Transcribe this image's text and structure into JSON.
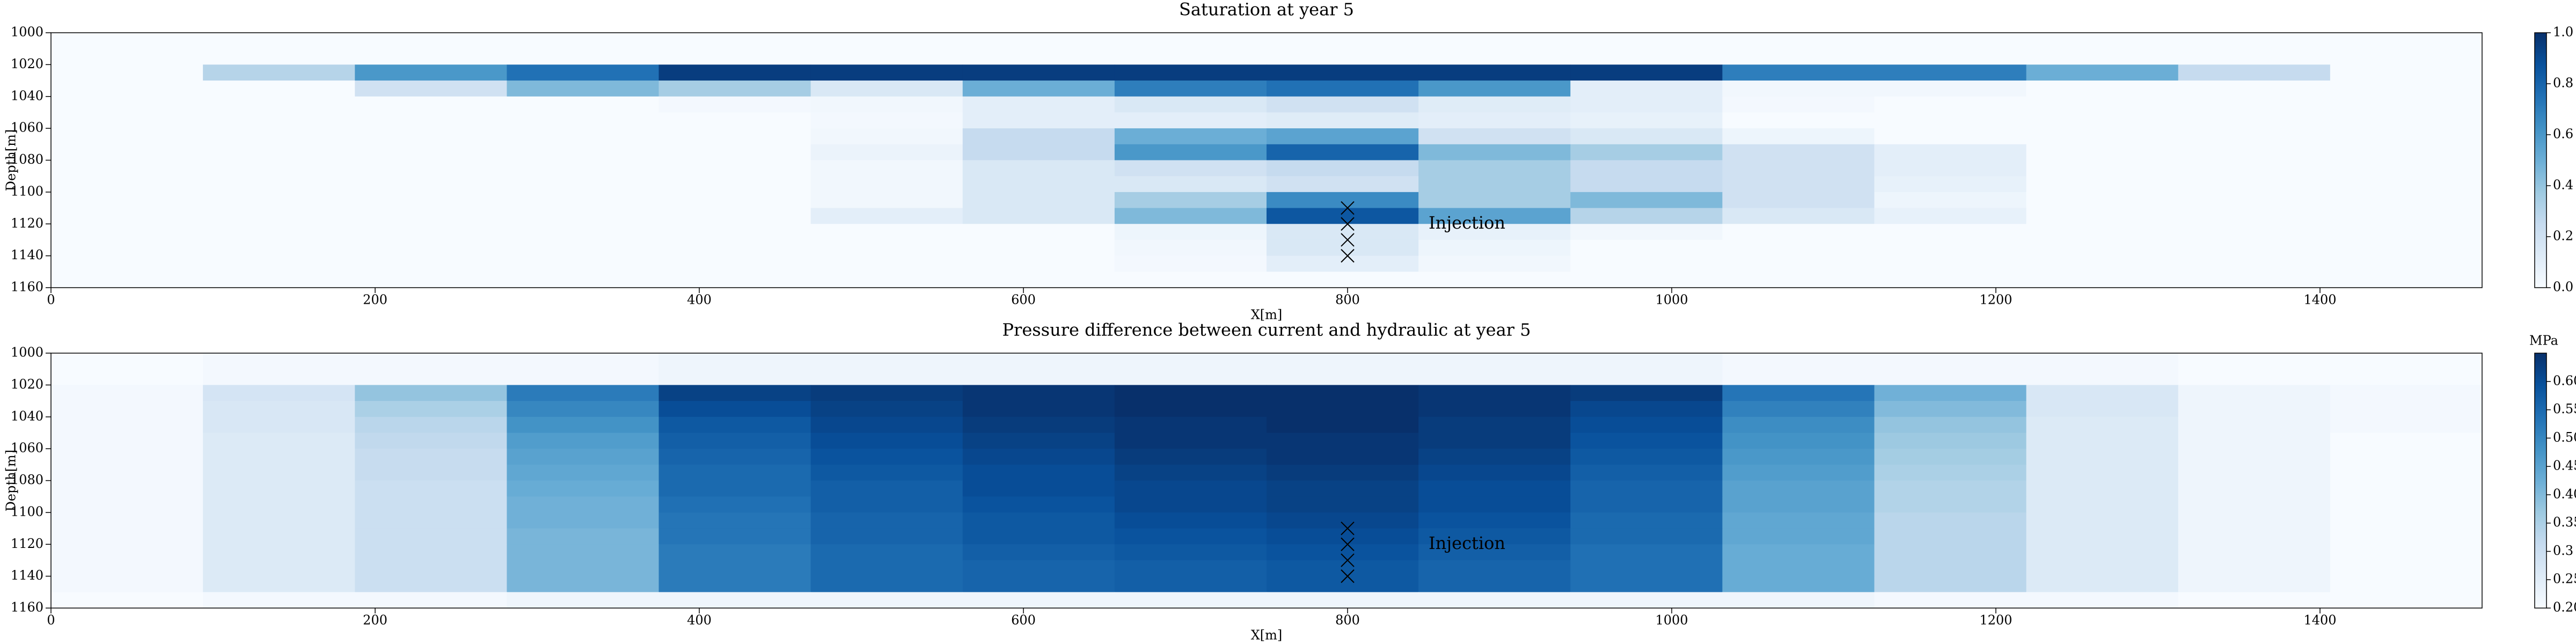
{
  "chart_data": [
    {
      "type": "heatmap",
      "title": "Saturation at year 5",
      "xlabel": "X[m]",
      "ylabel": "Depth[m]",
      "colormap": "Blues",
      "xbins": [
        0,
        93.75,
        187.5,
        281.25,
        375,
        468.75,
        562.5,
        656.25,
        750,
        843.75,
        937.5,
        1031.25,
        1125,
        1218.75,
        1312.5,
        1406.25,
        1500
      ],
      "ybins": [
        1000,
        1010,
        1020,
        1030,
        1040,
        1050,
        1060,
        1070,
        1080,
        1090,
        1100,
        1110,
        1120,
        1130,
        1140,
        1150,
        1160
      ],
      "xlim": [
        0,
        1500
      ],
      "ylim": [
        1000,
        1160
      ],
      "y_inverted": true,
      "xticks": [
        0,
        200,
        400,
        600,
        800,
        1000,
        1200,
        1400
      ],
      "yticks": [
        1000,
        1020,
        1040,
        1060,
        1080,
        1100,
        1120,
        1140,
        1160
      ],
      "values": [
        [
          0,
          0,
          0,
          0,
          0,
          0,
          0,
          0,
          0,
          0,
          0,
          0,
          0,
          0,
          0,
          0
        ],
        [
          0,
          0,
          0,
          0,
          0,
          0,
          0,
          0,
          0,
          0,
          0,
          0,
          0,
          0,
          0,
          0
        ],
        [
          0,
          0.3,
          0.6,
          0.75,
          0.95,
          0.95,
          0.95,
          0.95,
          0.95,
          0.95,
          0.95,
          0.7,
          0.7,
          0.5,
          0.25,
          0
        ],
        [
          0,
          0,
          0.2,
          0.45,
          0.35,
          0.15,
          0.5,
          0.7,
          0.75,
          0.6,
          0.1,
          0.03,
          0.03,
          0,
          0,
          0
        ],
        [
          0,
          0,
          0,
          0,
          0.02,
          0.03,
          0.1,
          0.15,
          0.2,
          0.12,
          0.1,
          0.02,
          0,
          0,
          0,
          0
        ],
        [
          0,
          0,
          0,
          0,
          0,
          0.02,
          0.1,
          0.1,
          0.12,
          0.1,
          0.08,
          0,
          0,
          0,
          0,
          0
        ],
        [
          0,
          0,
          0,
          0,
          0,
          0.03,
          0.25,
          0.5,
          0.55,
          0.2,
          0.15,
          0.05,
          0,
          0,
          0,
          0
        ],
        [
          0,
          0,
          0,
          0,
          0,
          0.06,
          0.25,
          0.6,
          0.8,
          0.45,
          0.35,
          0.2,
          0.1,
          0,
          0,
          0
        ],
        [
          0,
          0,
          0,
          0,
          0,
          0.03,
          0.15,
          0.2,
          0.25,
          0.35,
          0.25,
          0.2,
          0.1,
          0,
          0,
          0
        ],
        [
          0,
          0,
          0,
          0,
          0,
          0.03,
          0.15,
          0.15,
          0.2,
          0.35,
          0.25,
          0.2,
          0.08,
          0,
          0,
          0
        ],
        [
          0,
          0,
          0,
          0,
          0,
          0.03,
          0.15,
          0.35,
          0.65,
          0.35,
          0.45,
          0.2,
          0.05,
          0,
          0,
          0
        ],
        [
          0,
          0,
          0,
          0,
          0,
          0.1,
          0.15,
          0.45,
          0.85,
          0.55,
          0.3,
          0.15,
          0.08,
          0,
          0,
          0
        ],
        [
          0,
          0,
          0,
          0,
          0,
          0,
          0,
          0.05,
          0.15,
          0.08,
          0.03,
          0,
          0,
          0,
          0,
          0
        ],
        [
          0,
          0,
          0,
          0,
          0,
          0,
          0,
          0.03,
          0.15,
          0.05,
          0,
          0,
          0,
          0,
          0,
          0
        ],
        [
          0,
          0,
          0,
          0,
          0,
          0,
          0,
          0.02,
          0.1,
          0.03,
          0,
          0,
          0,
          0,
          0,
          0
        ],
        [
          0,
          0,
          0,
          0,
          0,
          0,
          0,
          0,
          0,
          0,
          0,
          0,
          0,
          0,
          0,
          0
        ]
      ],
      "markers": {
        "x": [
          800,
          800,
          800,
          800
        ],
        "y": [
          1110,
          1120,
          1130,
          1140
        ]
      },
      "annotation": {
        "text": "Injection",
        "x": 850,
        "y": 1120
      },
      "colorbar": {
        "lim": [
          0,
          1
        ],
        "ticks": [
          {
            "value": 0,
            "label": "0.0"
          },
          {
            "value": 0.2,
            "label": "0.2"
          },
          {
            "value": 0.4,
            "label": "0.4"
          },
          {
            "value": 0.6,
            "label": "0.6"
          },
          {
            "value": 0.8,
            "label": "0.8"
          },
          {
            "value": 1,
            "label": "1.0"
          }
        ]
      }
    },
    {
      "type": "heatmap",
      "title": "Pressure difference between current and hydraulic at year 5",
      "xlabel": "X[m]",
      "ylabel": "Depth[m]",
      "colormap": "Blues",
      "xbins": [
        0,
        93.75,
        187.5,
        281.25,
        375,
        468.75,
        562.5,
        656.25,
        750,
        843.75,
        937.5,
        1031.25,
        1125,
        1218.75,
        1312.5,
        1406.25,
        1500
      ],
      "ybins": [
        1000,
        1010,
        1020,
        1030,
        1040,
        1050,
        1060,
        1070,
        1080,
        1090,
        1100,
        1110,
        1120,
        1130,
        1140,
        1150,
        1160
      ],
      "xlim": [
        0,
        1500
      ],
      "ylim": [
        1000,
        1160
      ],
      "y_inverted": true,
      "xticks": [
        0,
        200,
        400,
        600,
        800,
        1000,
        1200,
        1400
      ],
      "yticks": [
        1000,
        1020,
        1040,
        1060,
        1080,
        1100,
        1120,
        1140,
        1160
      ],
      "values": [
        [
          0.2,
          0.21,
          0.21,
          0.21,
          0.22,
          0.22,
          0.22,
          0.22,
          0.22,
          0.22,
          0.22,
          0.21,
          0.21,
          0.21,
          0.2,
          0.2
        ],
        [
          0.2,
          0.21,
          0.21,
          0.21,
          0.22,
          0.22,
          0.22,
          0.22,
          0.22,
          0.22,
          0.22,
          0.21,
          0.21,
          0.21,
          0.2,
          0.2
        ],
        [
          0.21,
          0.28,
          0.38,
          0.52,
          0.62,
          0.63,
          0.64,
          0.65,
          0.65,
          0.64,
          0.63,
          0.53,
          0.42,
          0.27,
          0.22,
          0.21
        ],
        [
          0.21,
          0.27,
          0.35,
          0.5,
          0.6,
          0.62,
          0.64,
          0.65,
          0.65,
          0.64,
          0.61,
          0.51,
          0.4,
          0.27,
          0.22,
          0.21
        ],
        [
          0.21,
          0.27,
          0.33,
          0.48,
          0.58,
          0.61,
          0.63,
          0.64,
          0.65,
          0.63,
          0.6,
          0.49,
          0.38,
          0.26,
          0.22,
          0.21
        ],
        [
          0.21,
          0.26,
          0.32,
          0.46,
          0.57,
          0.6,
          0.62,
          0.64,
          0.64,
          0.63,
          0.59,
          0.48,
          0.37,
          0.26,
          0.22,
          0.2
        ],
        [
          0.21,
          0.26,
          0.31,
          0.45,
          0.56,
          0.59,
          0.61,
          0.63,
          0.64,
          0.62,
          0.58,
          0.47,
          0.36,
          0.26,
          0.22,
          0.2
        ],
        [
          0.21,
          0.26,
          0.31,
          0.44,
          0.55,
          0.58,
          0.6,
          0.62,
          0.63,
          0.61,
          0.57,
          0.46,
          0.35,
          0.26,
          0.22,
          0.2
        ],
        [
          0.21,
          0.26,
          0.3,
          0.43,
          0.55,
          0.57,
          0.6,
          0.61,
          0.62,
          0.6,
          0.56,
          0.45,
          0.34,
          0.26,
          0.22,
          0.2
        ],
        [
          0.21,
          0.26,
          0.3,
          0.42,
          0.54,
          0.57,
          0.59,
          0.61,
          0.62,
          0.6,
          0.56,
          0.45,
          0.34,
          0.26,
          0.22,
          0.2
        ],
        [
          0.21,
          0.26,
          0.3,
          0.42,
          0.53,
          0.56,
          0.58,
          0.6,
          0.61,
          0.59,
          0.55,
          0.44,
          0.33,
          0.26,
          0.22,
          0.2
        ],
        [
          0.21,
          0.26,
          0.3,
          0.41,
          0.53,
          0.56,
          0.58,
          0.59,
          0.6,
          0.58,
          0.55,
          0.44,
          0.33,
          0.26,
          0.22,
          0.2
        ],
        [
          0.21,
          0.26,
          0.3,
          0.41,
          0.52,
          0.55,
          0.57,
          0.58,
          0.59,
          0.57,
          0.54,
          0.43,
          0.33,
          0.26,
          0.22,
          0.2
        ],
        [
          0.21,
          0.26,
          0.3,
          0.41,
          0.52,
          0.55,
          0.56,
          0.57,
          0.58,
          0.56,
          0.54,
          0.43,
          0.33,
          0.26,
          0.22,
          0.2
        ],
        [
          0.21,
          0.26,
          0.3,
          0.41,
          0.52,
          0.55,
          0.56,
          0.57,
          0.58,
          0.56,
          0.54,
          0.43,
          0.33,
          0.26,
          0.22,
          0.2
        ],
        [
          0.2,
          0.21,
          0.21,
          0.22,
          0.22,
          0.22,
          0.22,
          0.22,
          0.22,
          0.22,
          0.22,
          0.22,
          0.21,
          0.21,
          0.2,
          0.2
        ]
      ],
      "markers": {
        "x": [
          800,
          800,
          800,
          800
        ],
        "y": [
          1110,
          1120,
          1130,
          1140
        ]
      },
      "annotation": {
        "text": "Injection",
        "x": 850,
        "y": 1120
      },
      "colorbar": {
        "label": "MPa",
        "lim": [
          0.2,
          0.65
        ],
        "ticks": [
          {
            "value": 0.2,
            "label": "0.20"
          },
          0.25,
          0.3,
          0.35,
          {
            "value": 0.4,
            "label": "0.40"
          },
          0.45,
          {
            "value": 0.5,
            "label": "0.50"
          },
          0.55,
          {
            "value": 0.6,
            "label": "0.60"
          }
        ]
      }
    }
  ]
}
